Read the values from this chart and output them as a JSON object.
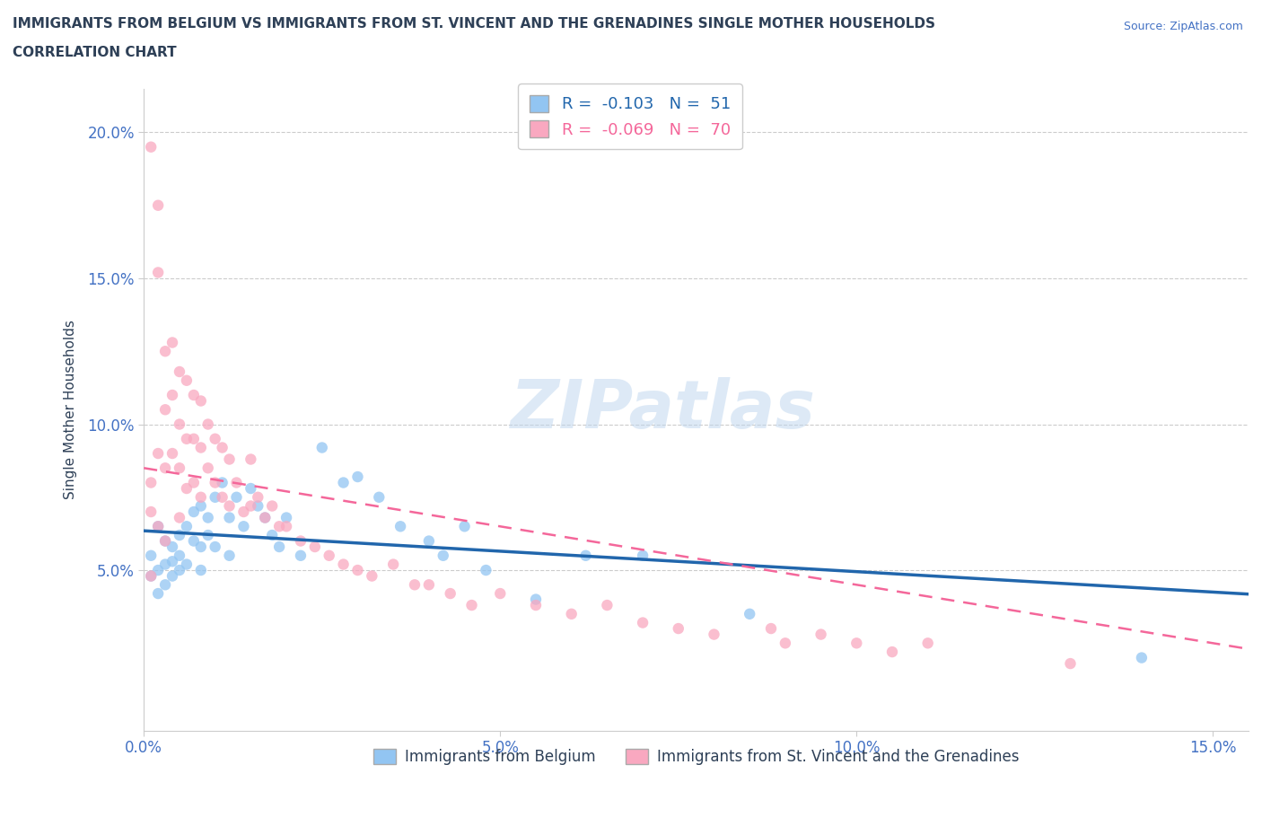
{
  "title_line1": "IMMIGRANTS FROM BELGIUM VS IMMIGRANTS FROM ST. VINCENT AND THE GRENADINES SINGLE MOTHER HOUSEHOLDS",
  "title_line2": "CORRELATION CHART",
  "source_text": "Source: ZipAtlas.com",
  "ylabel": "Single Mother Households",
  "watermark": "ZIPatlas",
  "belgium_R": -0.103,
  "belgium_N": 51,
  "stvincent_R": -0.069,
  "stvincent_N": 70,
  "belgium_color": "#92C5F2",
  "stvincent_color": "#F9A8C0",
  "belgium_line_color": "#2166AC",
  "stvincent_line_color": "#F4679A",
  "title_color": "#2E4057",
  "axis_color": "#4472C4",
  "grid_color": "#CCCCCC",
  "xlim": [
    0.0,
    0.155
  ],
  "ylim": [
    -0.005,
    0.215
  ],
  "xticks": [
    0.0,
    0.05,
    0.1,
    0.15
  ],
  "yticks": [
    0.05,
    0.1,
    0.15,
    0.2
  ],
  "xtick_labels": [
    "0.0%",
    "5.0%",
    "10.0%",
    "15.0%"
  ],
  "ytick_labels": [
    "5.0%",
    "10.0%",
    "15.0%",
    "20.0%"
  ],
  "belgium_x": [
    0.001,
    0.001,
    0.002,
    0.002,
    0.002,
    0.003,
    0.003,
    0.003,
    0.004,
    0.004,
    0.004,
    0.005,
    0.005,
    0.005,
    0.006,
    0.006,
    0.007,
    0.007,
    0.008,
    0.008,
    0.008,
    0.009,
    0.009,
    0.01,
    0.01,
    0.011,
    0.012,
    0.012,
    0.013,
    0.014,
    0.015,
    0.016,
    0.017,
    0.018,
    0.019,
    0.02,
    0.022,
    0.025,
    0.028,
    0.03,
    0.033,
    0.036,
    0.04,
    0.042,
    0.045,
    0.048,
    0.055,
    0.062,
    0.07,
    0.085,
    0.14
  ],
  "belgium_y": [
    0.055,
    0.048,
    0.065,
    0.05,
    0.042,
    0.06,
    0.052,
    0.045,
    0.058,
    0.053,
    0.048,
    0.062,
    0.055,
    0.05,
    0.065,
    0.052,
    0.07,
    0.06,
    0.072,
    0.058,
    0.05,
    0.068,
    0.062,
    0.075,
    0.058,
    0.08,
    0.068,
    0.055,
    0.075,
    0.065,
    0.078,
    0.072,
    0.068,
    0.062,
    0.058,
    0.068,
    0.055,
    0.092,
    0.08,
    0.082,
    0.075,
    0.065,
    0.06,
    0.055,
    0.065,
    0.05,
    0.04,
    0.055,
    0.055,
    0.035,
    0.02
  ],
  "stvincent_x": [
    0.001,
    0.001,
    0.001,
    0.001,
    0.002,
    0.002,
    0.002,
    0.002,
    0.003,
    0.003,
    0.003,
    0.003,
    0.004,
    0.004,
    0.004,
    0.005,
    0.005,
    0.005,
    0.005,
    0.006,
    0.006,
    0.006,
    0.007,
    0.007,
    0.007,
    0.008,
    0.008,
    0.008,
    0.009,
    0.009,
    0.01,
    0.01,
    0.011,
    0.011,
    0.012,
    0.012,
    0.013,
    0.014,
    0.015,
    0.015,
    0.016,
    0.017,
    0.018,
    0.019,
    0.02,
    0.022,
    0.024,
    0.026,
    0.028,
    0.03,
    0.032,
    0.035,
    0.038,
    0.04,
    0.043,
    0.046,
    0.05,
    0.055,
    0.06,
    0.065,
    0.07,
    0.075,
    0.08,
    0.088,
    0.09,
    0.095,
    0.1,
    0.105,
    0.11,
    0.13
  ],
  "stvincent_y": [
    0.195,
    0.08,
    0.07,
    0.048,
    0.175,
    0.152,
    0.09,
    0.065,
    0.125,
    0.105,
    0.085,
    0.06,
    0.128,
    0.11,
    0.09,
    0.118,
    0.1,
    0.085,
    0.068,
    0.115,
    0.095,
    0.078,
    0.11,
    0.095,
    0.08,
    0.108,
    0.092,
    0.075,
    0.1,
    0.085,
    0.095,
    0.08,
    0.092,
    0.075,
    0.088,
    0.072,
    0.08,
    0.07,
    0.088,
    0.072,
    0.075,
    0.068,
    0.072,
    0.065,
    0.065,
    0.06,
    0.058,
    0.055,
    0.052,
    0.05,
    0.048,
    0.052,
    0.045,
    0.045,
    0.042,
    0.038,
    0.042,
    0.038,
    0.035,
    0.038,
    0.032,
    0.03,
    0.028,
    0.03,
    0.025,
    0.028,
    0.025,
    0.022,
    0.025,
    0.018
  ],
  "bottom_legend_belgium": "Immigrants from Belgium",
  "bottom_legend_stvincent": "Immigrants from St. Vincent and the Grenadines"
}
